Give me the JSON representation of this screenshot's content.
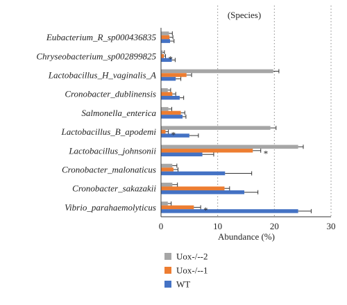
{
  "chart_data": {
    "type": "bar",
    "orientation": "horizontal",
    "title": "(Species)",
    "xlabel": "Abundance (%)",
    "ylabel": "",
    "xlim": [
      0,
      30
    ],
    "xticks": [
      0,
      10,
      20,
      30
    ],
    "grid": "dotted vertical",
    "legend_position": "bottom-left",
    "categories": [
      "Eubacterium_R_sp000436835",
      "Chryseobacterium_sp002899825",
      "Lactobacillus_H_vaginalis_A",
      "Cronobacter_dublinensis",
      "Salmonella_enterica",
      "Lactobacillus_B_apodemi",
      "Lactobacillus_johnsonii",
      "Cronobacter_malonaticus",
      "Cronobacter_sakazakii",
      "Vibrio_parahaemolyticus"
    ],
    "series": [
      {
        "name": "Uox-/--2",
        "color": "#a6a6a6",
        "values": [
          1.4,
          0.3,
          19.8,
          1.2,
          1.3,
          19.3,
          24.2,
          2.0,
          2.0,
          1.2
        ],
        "errors": [
          0.6,
          0.3,
          1.0,
          0.5,
          0.6,
          1.0,
          0.9,
          0.8,
          0.9,
          0.6
        ]
      },
      {
        "name": "Uox-/--1",
        "color": "#ed7d31",
        "values": [
          1.5,
          0.5,
          4.5,
          2.0,
          3.5,
          0.8,
          16.2,
          2.2,
          11.2,
          5.8
        ],
        "errors": [
          0.6,
          0.3,
          0.9,
          0.6,
          0.7,
          0.5,
          1.4,
          0.8,
          0.9,
          1.2
        ]
      },
      {
        "name": "WT",
        "color": "#4472c4",
        "values": [
          1.6,
          1.9,
          2.6,
          3.3,
          3.8,
          5.0,
          7.3,
          11.3,
          14.7,
          24.2
        ],
        "errors": [
          0.7,
          0.6,
          0.9,
          0.7,
          0.6,
          1.6,
          2.0,
          4.7,
          2.4,
          2.3
        ]
      }
    ],
    "annotations": [
      {
        "category": "Chryseobacterium_sp002899825",
        "text": "*"
      },
      {
        "category": "Lactobacillus_B_apodemi",
        "text": "*"
      },
      {
        "category": "Lactobacillus_johnsonii",
        "text": "*"
      },
      {
        "category": "Vibrio_parahaemolyticus",
        "text": "*"
      }
    ]
  }
}
